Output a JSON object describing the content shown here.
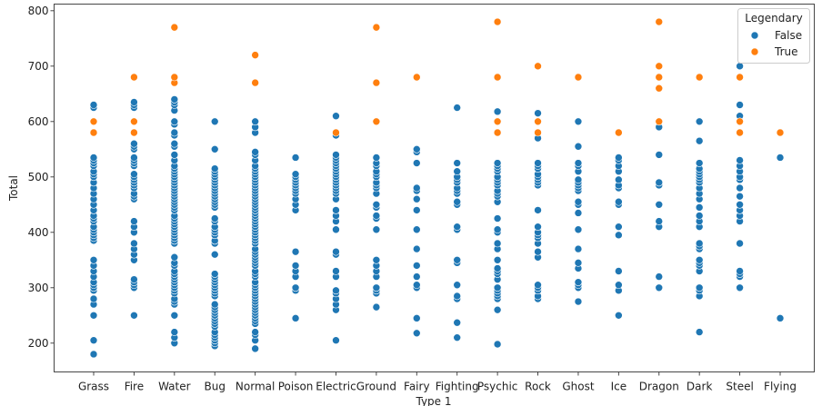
{
  "chart_data": {
    "type": "scatter",
    "xlabel": "Type 1",
    "ylabel": "Total",
    "ylim": [
      148,
      812
    ],
    "yticks": [
      200,
      300,
      400,
      500,
      600,
      700,
      800
    ],
    "grid": false,
    "legend_placement": "top-right",
    "categories": [
      "Grass",
      "Fire",
      "Water",
      "Bug",
      "Normal",
      "Poison",
      "Electric",
      "Ground",
      "Fairy",
      "Fighting",
      "Psychic",
      "Rock",
      "Ghost",
      "Ice",
      "Dragon",
      "Dark",
      "Steel",
      "Flying"
    ],
    "legend": {
      "title": "Legendary"
    },
    "series": [
      {
        "name": "False",
        "color": "#1f77b4",
        "points": {
          "Grass": [
            180,
            205,
            250,
            270,
            280,
            295,
            300,
            305,
            310,
            320,
            330,
            340,
            350,
            385,
            390,
            395,
            400,
            405,
            410,
            420,
            425,
            430,
            440,
            450,
            460,
            470,
            480,
            490,
            500,
            505,
            510,
            520,
            525,
            530,
            535,
            580,
            625,
            630
          ],
          "Fire": [
            250,
            300,
            305,
            310,
            315,
            350,
            360,
            370,
            380,
            400,
            410,
            420,
            460,
            465,
            470,
            480,
            485,
            490,
            495,
            500,
            505,
            520,
            525,
            530,
            535,
            550,
            555,
            560,
            580,
            625,
            630,
            635
          ],
          "Water": [
            200,
            210,
            220,
            250,
            270,
            275,
            280,
            290,
            295,
            300,
            305,
            310,
            315,
            320,
            325,
            330,
            340,
            345,
            355,
            380,
            385,
            390,
            395,
            400,
            405,
            410,
            415,
            420,
            425,
            430,
            440,
            445,
            450,
            455,
            460,
            465,
            470,
            475,
            480,
            485,
            490,
            495,
            500,
            505,
            510,
            515,
            520,
            530,
            540,
            555,
            560,
            575,
            580,
            595,
            600,
            620,
            630,
            635,
            640
          ],
          "Bug": [
            195,
            200,
            205,
            210,
            215,
            220,
            230,
            235,
            240,
            245,
            250,
            255,
            260,
            265,
            270,
            285,
            290,
            295,
            300,
            305,
            310,
            315,
            320,
            325,
            360,
            380,
            385,
            395,
            400,
            405,
            410,
            420,
            425,
            445,
            450,
            455,
            460,
            465,
            470,
            475,
            480,
            485,
            490,
            495,
            500,
            505,
            510,
            515,
            550,
            600
          ],
          "Normal": [
            190,
            205,
            215,
            220,
            235,
            240,
            245,
            250,
            255,
            260,
            265,
            270,
            275,
            280,
            285,
            290,
            295,
            300,
            305,
            310,
            320,
            325,
            330,
            340,
            345,
            350,
            355,
            360,
            365,
            370,
            380,
            385,
            390,
            395,
            400,
            405,
            410,
            415,
            420,
            425,
            430,
            435,
            440,
            445,
            450,
            455,
            460,
            465,
            470,
            475,
            480,
            485,
            490,
            495,
            500,
            505,
            510,
            515,
            520,
            530,
            540,
            545,
            580,
            590,
            600
          ],
          "Poison": [
            245,
            295,
            300,
            320,
            330,
            340,
            365,
            440,
            450,
            460,
            470,
            475,
            480,
            485,
            490,
            495,
            500,
            505,
            535
          ],
          "Electric": [
            205,
            260,
            270,
            280,
            290,
            295,
            320,
            330,
            360,
            365,
            405,
            420,
            430,
            440,
            460,
            470,
            475,
            480,
            485,
            490,
            495,
            500,
            505,
            510,
            515,
            520,
            525,
            530,
            535,
            540,
            575,
            610
          ],
          "Ground": [
            265,
            290,
            295,
            300,
            320,
            330,
            340,
            350,
            405,
            425,
            430,
            445,
            450,
            470,
            480,
            485,
            490,
            500,
            505,
            510,
            520,
            525,
            535
          ],
          "Fairy": [
            218,
            245,
            300,
            305,
            320,
            340,
            370,
            405,
            440,
            460,
            475,
            480,
            525,
            545,
            550
          ],
          "Fighting": [
            210,
            237,
            280,
            285,
            305,
            345,
            350,
            405,
            410,
            450,
            455,
            470,
            475,
            480,
            490,
            495,
            500,
            510,
            525,
            625
          ],
          "Psychic": [
            198,
            260,
            280,
            285,
            290,
            295,
            300,
            315,
            325,
            330,
            335,
            350,
            370,
            380,
            400,
            405,
            425,
            455,
            465,
            470,
            475,
            485,
            490,
            495,
            500,
            510,
            515,
            520,
            525,
            580,
            600,
            618
          ],
          "Rock": [
            280,
            285,
            295,
            300,
            305,
            355,
            365,
            380,
            390,
            395,
            400,
            410,
            440,
            485,
            490,
            495,
            500,
            505,
            515,
            520,
            525,
            570,
            615
          ],
          "Ghost": [
            275,
            300,
            305,
            310,
            335,
            345,
            370,
            405,
            435,
            450,
            455,
            475,
            480,
            485,
            490,
            495,
            510,
            520,
            525,
            555,
            600
          ],
          "Ice": [
            250,
            295,
            305,
            330,
            395,
            410,
            450,
            455,
            480,
            485,
            495,
            510,
            520,
            530,
            535
          ],
          "Dragon": [
            300,
            320,
            410,
            420,
            450,
            485,
            490,
            540,
            590
          ],
          "Dark": [
            220,
            285,
            295,
            300,
            330,
            340,
            345,
            350,
            370,
            375,
            380,
            410,
            420,
            430,
            445,
            460,
            470,
            480,
            490,
            495,
            500,
            505,
            510,
            515,
            525,
            565,
            600
          ],
          "Steel": [
            300,
            320,
            325,
            330,
            380,
            420,
            430,
            440,
            450,
            465,
            480,
            495,
            500,
            510,
            520,
            530,
            600,
            610,
            630,
            700
          ],
          "Flying": [
            245,
            535
          ]
        }
      },
      {
        "name": "True",
        "color": "#ff7f0e",
        "points": {
          "Grass": [
            580,
            600
          ],
          "Fire": [
            580,
            600,
            680
          ],
          "Water": [
            670,
            680,
            770
          ],
          "Bug": [],
          "Normal": [
            670,
            720
          ],
          "Poison": [],
          "Electric": [
            580
          ],
          "Ground": [
            600,
            670,
            770
          ],
          "Fairy": [
            680
          ],
          "Fighting": [],
          "Psychic": [
            580,
            600,
            680,
            780
          ],
          "Rock": [
            580,
            600,
            700
          ],
          "Ghost": [
            680
          ],
          "Ice": [
            580
          ],
          "Dragon": [
            600,
            660,
            680,
            700,
            780
          ],
          "Dark": [
            680
          ],
          "Steel": [
            580,
            600,
            680
          ],
          "Flying": [
            580
          ]
        }
      }
    ]
  }
}
